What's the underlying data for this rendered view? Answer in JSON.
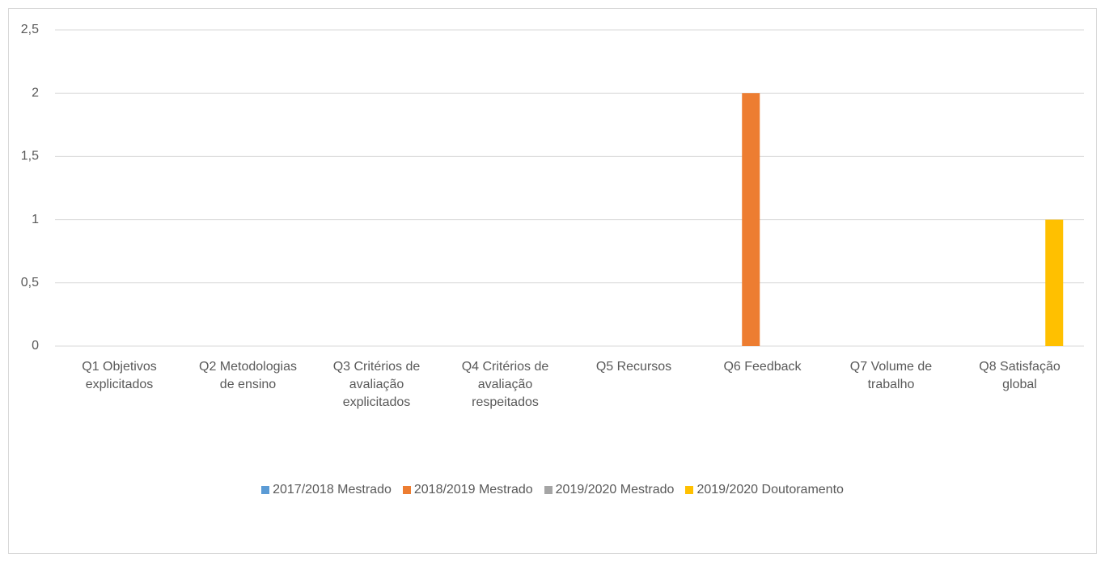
{
  "chart_data": {
    "type": "bar",
    "categories": [
      "Q1 Objetivos explicitados",
      "Q2 Metodologias de ensino",
      "Q3 Critérios de avaliação explicitados",
      "Q4 Critérios de avaliação respeitados",
      "Q5 Recursos",
      "Q6 Feedback",
      "Q7 Volume de trabalho",
      "Q8 Satisfação global"
    ],
    "series": [
      {
        "name": "2017/2018 Mestrado",
        "color": "#5b9bd5",
        "values": [
          0,
          0,
          0,
          0,
          0,
          0,
          0,
          0
        ]
      },
      {
        "name": "2018/2019 Mestrado",
        "color": "#ed7d31",
        "values": [
          0,
          0,
          0,
          0,
          0,
          2,
          0,
          0
        ]
      },
      {
        "name": "2019/2020 Mestrado",
        "color": "#a5a5a5",
        "values": [
          0,
          0,
          0,
          0,
          0,
          0,
          0,
          0
        ]
      },
      {
        "name": "2019/2020 Doutoramento",
        "color": "#ffc000",
        "values": [
          0,
          0,
          0,
          0,
          0,
          0,
          0,
          1
        ]
      }
    ],
    "ylim": [
      0,
      2.5
    ],
    "yticks": [
      0,
      {
        "value": 0.5,
        "label": "0,5"
      },
      1,
      {
        "value": 1.5,
        "label": "1,5"
      },
      2,
      {
        "value": 2.5,
        "label": "2,5"
      }
    ],
    "grid": true,
    "legend": "bottom"
  }
}
